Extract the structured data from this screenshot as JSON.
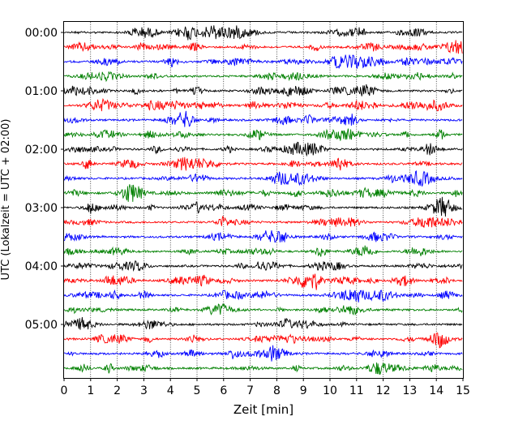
{
  "chart_data": {
    "type": "line",
    "title": "",
    "xlabel": "Zeit  [min]",
    "ylabel": "UTC (Lokalzeit = UTC + 02:00)",
    "xlim": [
      0,
      15
    ],
    "x_ticks": [
      0,
      1,
      2,
      3,
      4,
      5,
      6,
      7,
      8,
      9,
      10,
      11,
      12,
      13,
      14,
      15
    ],
    "y_tick_labels": [
      "00:00",
      "01:00",
      "02:00",
      "03:00",
      "04:00",
      "05:00"
    ],
    "trace_count": 24,
    "trace_colors": [
      "#000000",
      "#ff0000",
      "#0000ff",
      "#008000"
    ],
    "grid_x": true,
    "grid_y": false
  }
}
